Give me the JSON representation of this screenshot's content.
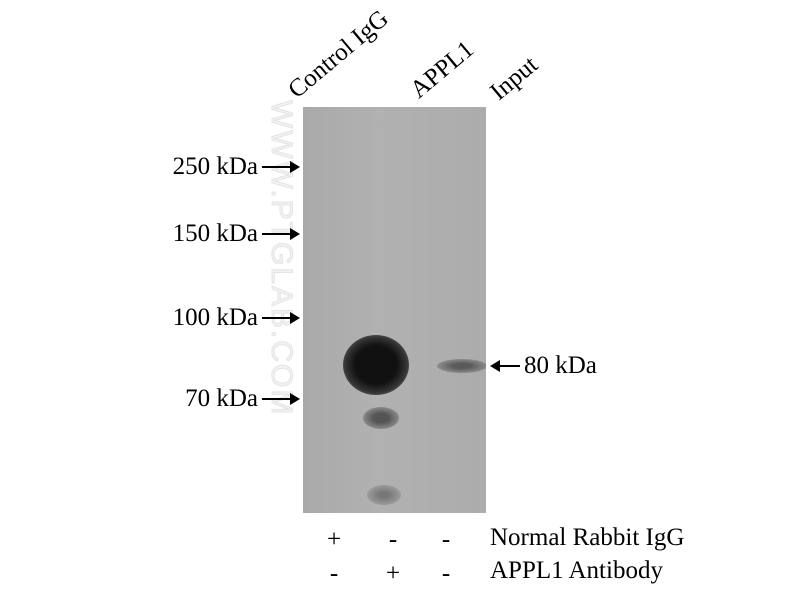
{
  "watermark": "WWW.PTGLAB.COM",
  "lanes": [
    "Control IgG",
    "APPL1",
    "Input"
  ],
  "markers": [
    "250 kDa",
    "150 kDa",
    "100 kDa",
    "70 kDa"
  ],
  "target_label": "80 kDa",
  "rows": [
    {
      "label": "Normal Rabbit IgG",
      "signs": [
        "+",
        "-",
        "-"
      ]
    },
    {
      "label": "APPL1 Antibody",
      "signs": [
        "-",
        "+",
        "-"
      ]
    }
  ]
}
